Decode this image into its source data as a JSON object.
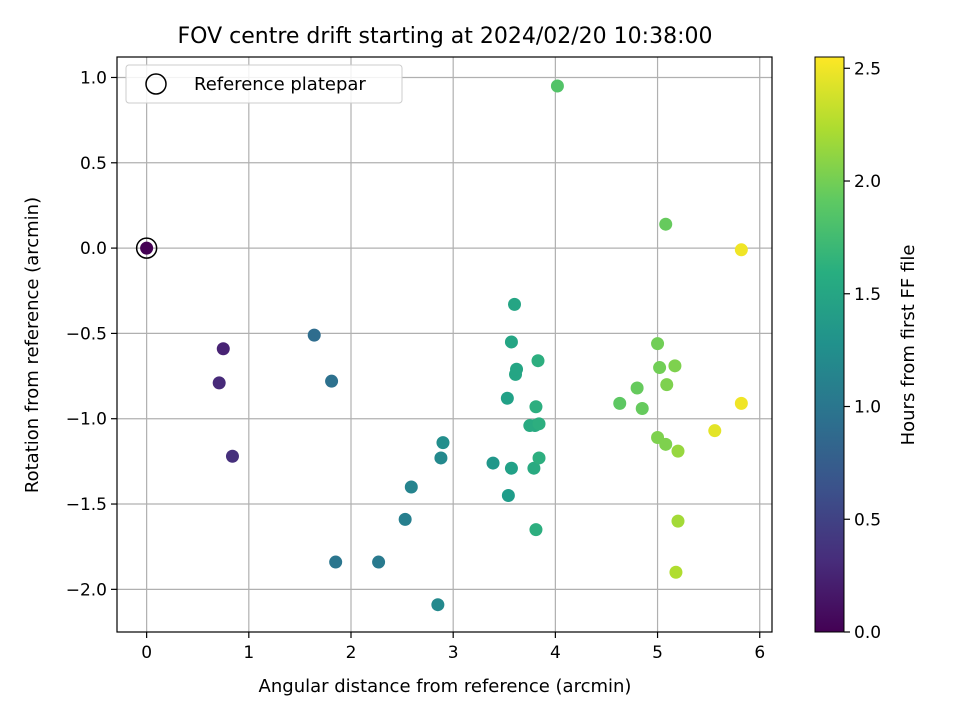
{
  "chart_data": {
    "type": "scatter",
    "title": "FOV centre drift starting at 2024/02/20 10:38:00",
    "xlabel": "Angular distance from reference (arcmin)",
    "ylabel": "Rotation from reference (arcmin)",
    "xlim": [
      -0.29,
      6.12
    ],
    "ylim": [
      -2.25,
      1.12
    ],
    "x_ticks": [
      0,
      1,
      2,
      3,
      4,
      5,
      6
    ],
    "x_tick_labels": [
      "0",
      "1",
      "2",
      "3",
      "4",
      "5",
      "6"
    ],
    "y_ticks": [
      1.0,
      0.5,
      0.0,
      -0.5,
      -1.0,
      -1.5,
      -2.0
    ],
    "y_tick_labels": [
      "1.0",
      "0.5",
      "0.0",
      "−0.5",
      "−1.0",
      "−1.5",
      "−2.0"
    ],
    "grid": true,
    "legend": {
      "position": "top-left",
      "entries": [
        {
          "label": "Reference platepar",
          "marker": "open-circle"
        }
      ]
    },
    "colorbar": {
      "label": "Hours from first FF file",
      "colormap": "viridis",
      "range": [
        0.0,
        2.55
      ],
      "ticks": [
        0.0,
        0.5,
        1.0,
        1.5,
        2.0,
        2.5
      ],
      "tick_labels": [
        "0.0",
        "0.5",
        "1.0",
        "1.5",
        "2.0",
        "2.5"
      ]
    },
    "reference_point": {
      "x": 0.0,
      "y": 0.0
    },
    "points": [
      {
        "x": 0.0,
        "y": 0.0,
        "t": 0.0
      },
      {
        "x": 0.75,
        "y": -0.59,
        "t": 0.25
      },
      {
        "x": 0.71,
        "y": -0.79,
        "t": 0.3
      },
      {
        "x": 0.84,
        "y": -1.22,
        "t": 0.35
      },
      {
        "x": 1.64,
        "y": -0.51,
        "t": 0.9
      },
      {
        "x": 1.81,
        "y": -0.78,
        "t": 0.95
      },
      {
        "x": 1.85,
        "y": -1.84,
        "t": 1.0
      },
      {
        "x": 2.27,
        "y": -1.84,
        "t": 1.05
      },
      {
        "x": 2.53,
        "y": -1.59,
        "t": 1.1
      },
      {
        "x": 2.59,
        "y": -1.4,
        "t": 1.15
      },
      {
        "x": 2.85,
        "y": -2.09,
        "t": 1.2
      },
      {
        "x": 2.88,
        "y": -1.23,
        "t": 1.2
      },
      {
        "x": 2.9,
        "y": -1.14,
        "t": 1.25
      },
      {
        "x": 3.39,
        "y": -1.26,
        "t": 1.35
      },
      {
        "x": 3.54,
        "y": -1.45,
        "t": 1.4
      },
      {
        "x": 3.57,
        "y": -1.29,
        "t": 1.45
      },
      {
        "x": 3.53,
        "y": -0.88,
        "t": 1.45
      },
      {
        "x": 3.57,
        "y": -0.55,
        "t": 1.5
      },
      {
        "x": 3.6,
        "y": -0.33,
        "t": 1.5
      },
      {
        "x": 3.61,
        "y": -0.74,
        "t": 1.5
      },
      {
        "x": 3.62,
        "y": -0.71,
        "t": 1.5
      },
      {
        "x": 3.75,
        "y": -1.04,
        "t": 1.55
      },
      {
        "x": 3.79,
        "y": -1.29,
        "t": 1.55
      },
      {
        "x": 3.8,
        "y": -1.04,
        "t": 1.55
      },
      {
        "x": 3.81,
        "y": -1.65,
        "t": 1.6
      },
      {
        "x": 3.81,
        "y": -0.93,
        "t": 1.6
      },
      {
        "x": 3.83,
        "y": -0.66,
        "t": 1.6
      },
      {
        "x": 3.84,
        "y": -1.03,
        "t": 1.6
      },
      {
        "x": 3.84,
        "y": -1.23,
        "t": 1.6
      },
      {
        "x": 4.02,
        "y": 0.95,
        "t": 1.85
      },
      {
        "x": 4.63,
        "y": -0.91,
        "t": 1.9
      },
      {
        "x": 4.8,
        "y": -0.82,
        "t": 1.95
      },
      {
        "x": 4.85,
        "y": -0.94,
        "t": 1.95
      },
      {
        "x": 5.0,
        "y": -0.56,
        "t": 2.0
      },
      {
        "x": 5.02,
        "y": -0.7,
        "t": 2.0
      },
      {
        "x": 5.0,
        "y": -1.11,
        "t": 2.05
      },
      {
        "x": 5.08,
        "y": -1.15,
        "t": 2.05
      },
      {
        "x": 5.09,
        "y": -0.8,
        "t": 2.05
      },
      {
        "x": 5.08,
        "y": 0.14,
        "t": 1.95
      },
      {
        "x": 5.17,
        "y": -0.69,
        "t": 2.05
      },
      {
        "x": 5.2,
        "y": -1.19,
        "t": 2.15
      },
      {
        "x": 5.2,
        "y": -1.6,
        "t": 2.2
      },
      {
        "x": 5.18,
        "y": -1.9,
        "t": 2.25
      },
      {
        "x": 5.56,
        "y": -1.07,
        "t": 2.45
      },
      {
        "x": 5.82,
        "y": -0.91,
        "t": 2.5
      },
      {
        "x": 5.82,
        "y": -0.01,
        "t": 2.5
      }
    ]
  }
}
